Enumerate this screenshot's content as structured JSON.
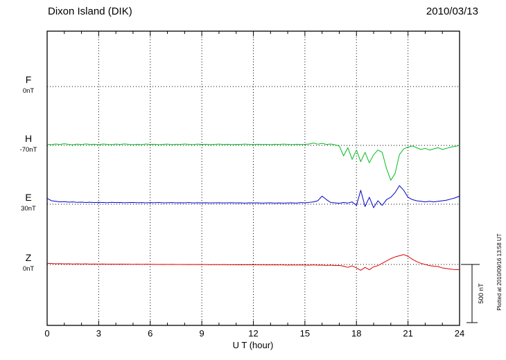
{
  "header": {
    "title": "Dixon Island (DIK)",
    "date": "2010/03/13"
  },
  "xaxis": {
    "label": "U T (hour)",
    "ticks": [
      "0",
      "3",
      "6",
      "9",
      "12",
      "15",
      "18",
      "21",
      "24"
    ]
  },
  "scale_bar": {
    "label": "500 nT"
  },
  "watermark": "Plotted at 2010/09/16 13:58 UT",
  "chart_data": {
    "type": "line",
    "station": "Dixon Island (DIK)",
    "date": "2010/03/13",
    "xlabel": "U T (hour)",
    "x_range_hours": [
      0,
      24
    ],
    "x_step_hours": 0.25,
    "x_tick_labels": [
      "0",
      "3",
      "6",
      "9",
      "12",
      "15",
      "18",
      "21",
      "24"
    ],
    "scale_bar_nT": 500,
    "grid": "dotted vertical lines every 3 h; dotted horizontal baseline for each component",
    "values_unit": "nT deviation from each component baseline",
    "series": [
      {
        "name": "F",
        "baseline_label": "0nT",
        "color": "#ffa500",
        "values": []
      },
      {
        "name": "H",
        "baseline_label": "-70nT",
        "color": "#00bb22",
        "values": [
          10,
          6,
          12,
          8,
          14,
          9,
          5,
          11,
          7,
          13,
          8,
          10,
          6,
          12,
          9,
          7,
          11,
          8,
          13,
          9,
          6,
          10,
          7,
          12,
          8,
          10,
          6,
          9,
          11,
          7,
          10,
          8,
          12,
          9,
          7,
          11,
          8,
          10,
          7,
          9,
          11,
          8,
          10,
          7,
          9,
          8,
          11,
          9,
          7,
          10,
          8,
          9,
          7,
          10,
          8,
          11,
          9,
          7,
          10,
          8,
          9,
          12,
          20,
          10,
          18,
          8,
          12,
          5,
          -5,
          -90,
          -20,
          -120,
          -40,
          -140,
          -60,
          -150,
          -80,
          -40,
          -60,
          -200,
          -300,
          -240,
          -80,
          -30,
          -15,
          -5,
          -20,
          -35,
          -25,
          -40,
          -30,
          -20,
          -35,
          -25,
          -15,
          -8,
          0
        ]
      },
      {
        "name": "E",
        "baseline_label": "30nT",
        "color": "#0000cc",
        "values": [
          50,
          30,
          25,
          20,
          22,
          18,
          20,
          16,
          18,
          15,
          17,
          14,
          16,
          15,
          13,
          16,
          14,
          15,
          13,
          14,
          15,
          13,
          14,
          12,
          14,
          13,
          15,
          12,
          13,
          14,
          12,
          13,
          12,
          14,
          11,
          13,
          12,
          13,
          11,
          12,
          13,
          11,
          12,
          13,
          11,
          12,
          10,
          12,
          11,
          12,
          10,
          11,
          12,
          10,
          11,
          10,
          11,
          12,
          10,
          14,
          12,
          16,
          20,
          30,
          70,
          40,
          15,
          12,
          8,
          15,
          10,
          20,
          -10,
          120,
          -20,
          60,
          -30,
          30,
          -10,
          40,
          60,
          100,
          160,
          120,
          60,
          40,
          30,
          25,
          20,
          25,
          20,
          25,
          30,
          35,
          45,
          55,
          70
        ]
      },
      {
        "name": "Z",
        "baseline_label": "0nT",
        "color": "#dd0000",
        "values": [
          10,
          8,
          6,
          7,
          5,
          6,
          4,
          5,
          4,
          5,
          3,
          4,
          3,
          4,
          2,
          3,
          2,
          3,
          2,
          2,
          1,
          2,
          1,
          2,
          1,
          1,
          0,
          1,
          0,
          1,
          0,
          0,
          -1,
          0,
          -1,
          0,
          -1,
          -1,
          -2,
          -1,
          -2,
          -1,
          -2,
          -2,
          -3,
          -2,
          -3,
          -2,
          -3,
          -3,
          -4,
          -3,
          -4,
          -3,
          -4,
          -4,
          -5,
          -4,
          -5,
          -4,
          -5,
          -6,
          -4,
          -6,
          -5,
          -8,
          -6,
          -10,
          -8,
          -15,
          -25,
          -12,
          -30,
          -50,
          -25,
          -45,
          -20,
          -10,
          10,
          30,
          50,
          65,
          75,
          85,
          70,
          45,
          25,
          10,
          0,
          -10,
          -15,
          -18,
          -30,
          -35,
          -40,
          -45,
          -45
        ]
      }
    ]
  }
}
